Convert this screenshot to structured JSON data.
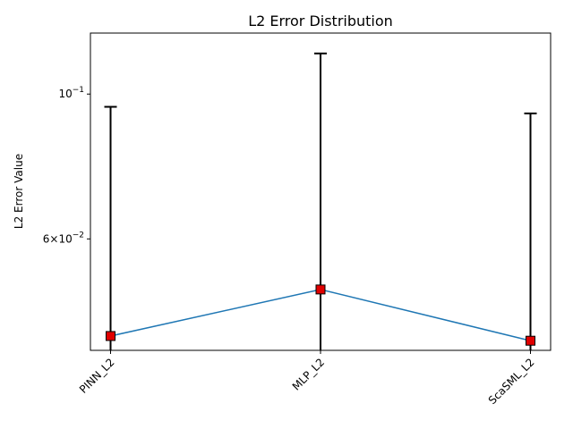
{
  "chart_data": {
    "type": "line",
    "title": "L2 Error Distribution",
    "xlabel": "",
    "ylabel": "L2 Error Value",
    "yscale": "log",
    "ylim": [
      0.0405,
      0.124
    ],
    "categories": [
      "PINN_L2",
      "MLP_L2",
      "ScaSML_L2"
    ],
    "series": [
      {
        "values": [
          0.0426,
          0.0502,
          0.0419
        ],
        "error_upper": [
          0.0956,
          0.1154,
          0.0934
        ],
        "error_lower": [
          0.0405,
          0.0405,
          0.0405
        ],
        "line_color": "#1f77b4",
        "marker": "square",
        "marker_color": "#e00000"
      }
    ],
    "yticks": [
      {
        "value": 0.1,
        "base": "10",
        "exp": "−1"
      },
      {
        "value": 0.06,
        "mant": "6",
        "base": "10",
        "exp": "−2"
      }
    ],
    "grid": false,
    "legend": "none"
  }
}
